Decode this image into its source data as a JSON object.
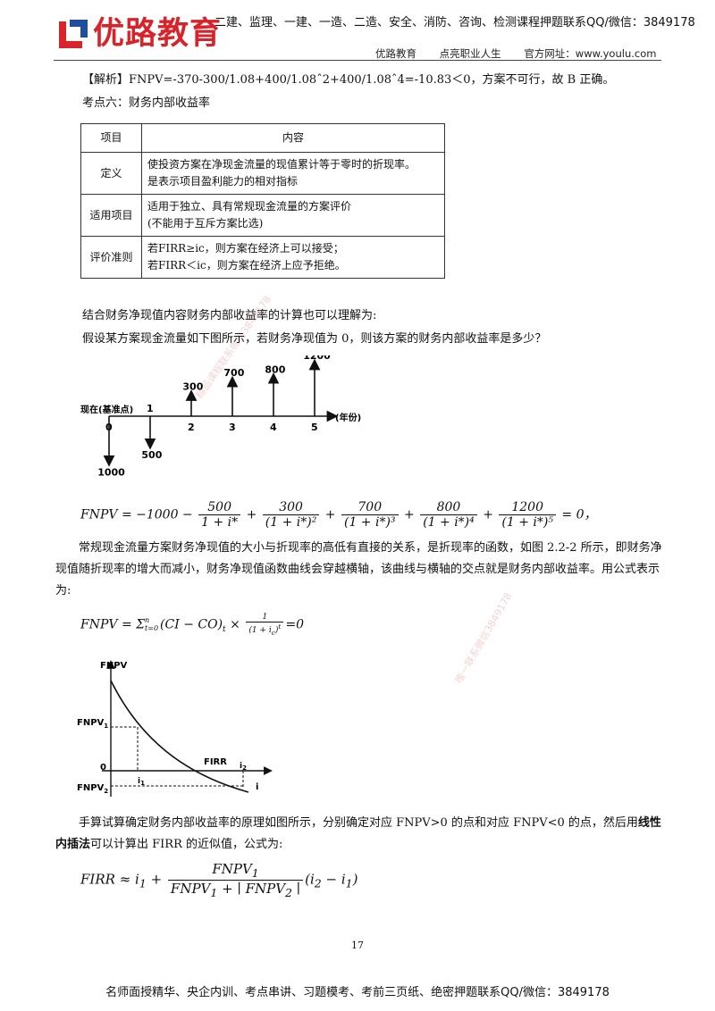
{
  "header": {
    "logo_text": "优路教育",
    "tagline": "二建、监理、一建、一造、二造、安全、消防、咨询、检测课程押题联系QQ/微信：3849178",
    "sub_items": [
      "优路教育",
      "点亮职业人生",
      "官方网址：www.youlu.com"
    ]
  },
  "analysis_line": "【解析】FNPV=-370-300/1.08+400/1.08ˆ2+400/1.08ˆ4=-10.83＜0，方案不可行，故 B 正确。",
  "section_title": "考点六：财务内部收益率",
  "table": {
    "headers": [
      "项目",
      "内容"
    ],
    "rows": [
      {
        "key": "定义",
        "lines": [
          "使投资方案在净现金流量的现值累计等于零时的折现率。",
          "是表示项目盈利能力的相对指标"
        ]
      },
      {
        "key": "适用项目",
        "lines": [
          "适用于独立、具有常规现金流量的方案评价",
          "(不能用于互斥方案比选)"
        ]
      },
      {
        "key": "评价准则",
        "lines": [
          "若FIRR≥ic，则方案在经济上可以接受；",
          "若FIRR＜ic，则方案在经济上应予拒绝。"
        ]
      }
    ]
  },
  "para1": "结合财务净现值内容财务内部收益率的计算也可以理解为:",
  "para2": "假设某方案现金流量如下图所示，若财务净现值为 0，则该方案的财务内部收益率是多少？",
  "cashflow": {
    "origin_label": "现在(基准点)",
    "unit_label": "(年份)",
    "periods": [
      "0",
      "1",
      "2",
      "3",
      "4",
      "5"
    ],
    "flows": [
      {
        "period": "0",
        "value": "1000",
        "direction": "down"
      },
      {
        "period": "1",
        "value": "500",
        "direction": "down"
      },
      {
        "period": "2",
        "value": "300",
        "direction": "up"
      },
      {
        "period": "3",
        "value": "700",
        "direction": "up"
      },
      {
        "period": "4",
        "value": "800",
        "direction": "up"
      },
      {
        "period": "5",
        "value": "1200",
        "direction": "up"
      }
    ]
  },
  "eq1": {
    "lhs": "FNPV = −1000 −",
    "terms": [
      {
        "num": "500",
        "den": "1 + i*",
        "sign": ""
      },
      {
        "num": "300",
        "den": "(1 + i*)²",
        "sign": "+"
      },
      {
        "num": "700",
        "den": "(1 + i*)³",
        "sign": "+"
      },
      {
        "num": "800",
        "den": "(1 + i*)⁴",
        "sign": "+"
      },
      {
        "num": "1200",
        "den": "(1 + i*)⁵",
        "sign": "+"
      }
    ],
    "rhs": "= 0，"
  },
  "para3": "常规现金流量方案财务净现值的大小与折现率的高低有直接的关系，是折现率的函数，如图 2.2-2 所示，即财务净现值随折现率的增大而减小，财务净现值函数曲线会穿越横轴，该曲线与横轴的交点就是财务内部收益率。用公式表示为:",
  "eq2": {
    "lhs": "FNPV = Σ",
    "sum_upper": "n",
    "sum_lower": "t=0",
    "body": "(CI − CO)",
    "sub_t": "t",
    "times": "×",
    "frac_num": "1",
    "frac_den": "(1 + i",
    "frac_den_sub": "c",
    "frac_den_end": ")",
    "frac_den_sup": "t",
    "rhs": "=0"
  },
  "npv_chart": {
    "y_label": "FNPV",
    "x_label": "i",
    "origin": "0",
    "curve_label": "FIRR",
    "fnpv1": "FNPV",
    "fnpv1_sub": "1",
    "fnpv2": "FNPV",
    "fnpv2_sub": "2",
    "i1": "i",
    "i1_sub": "1",
    "i2": "i",
    "i2_sub": "2"
  },
  "para4_pre": "手算试算确定财务内部收益率的原理如图所示，分别确定对应 FNPV>0 的点和对应 FNPV<0 的点，然后用",
  "para4_bold": "线性内插法",
  "para4_post": "可以计算出 FIRR 的近似值，公式为:",
  "eq3": {
    "lhs": "FIRR ≈ i",
    "lhs_sub": "1",
    "plus": "+",
    "num": "FNPV",
    "num_sub": "1",
    "den": "FNPV",
    "den_sub": "1",
    "den_mid": " + ∣ FNPV",
    "den_sub2": "2",
    "den_end": " ∣",
    "tail": "(i",
    "tail_sub2": "2",
    "tail_mid": " − i",
    "tail_sub1": "1",
    "tail_end": ")"
  },
  "watermarks": [
    "精品课程联系微信3849178",
    "唯一联系微信3849178"
  ],
  "page_number": "17",
  "footer": "名师面授精华、央企内训、考点串讲、习题模考、考前三页纸、绝密押题联系QQ/微信：3849178",
  "colors": {
    "brand": "#d8232a",
    "accent_blue": "#1f4e9c"
  }
}
